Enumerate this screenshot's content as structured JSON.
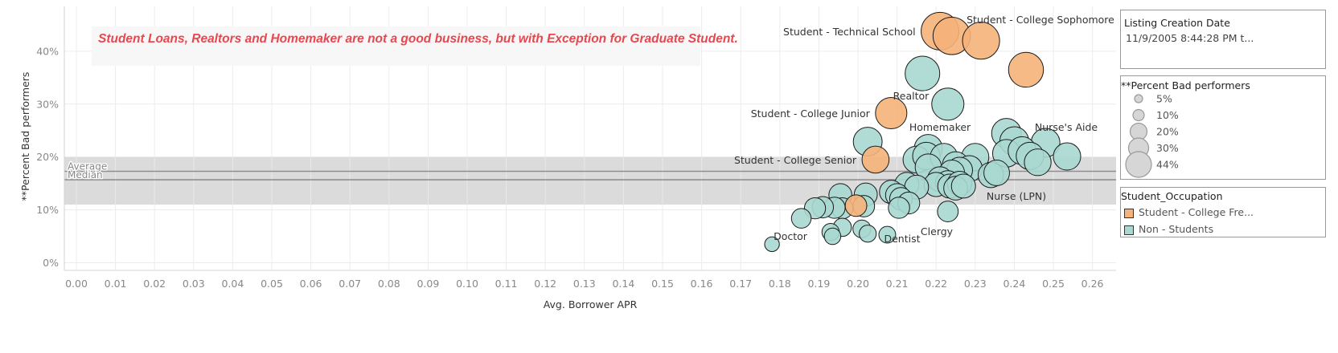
{
  "chart_data": {
    "type": "scatter",
    "xlabel": "Avg. Borrower APR",
    "ylabel": "**Percent Bad performers",
    "xlim": [
      0,
      0.268
    ],
    "ylim": [
      -0.01,
      0.48
    ],
    "x_ticks": [
      "0.00",
      "0.01",
      "0.02",
      "0.03",
      "0.04",
      "0.05",
      "0.06",
      "0.07",
      "0.08",
      "0.09",
      "0.10",
      "0.11",
      "0.12",
      "0.13",
      "0.14",
      "0.15",
      "0.16",
      "0.17",
      "0.18",
      "0.19",
      "0.20",
      "0.21",
      "0.22",
      "0.23",
      "0.24",
      "0.25",
      "0.26"
    ],
    "y_ticks": [
      {
        "value": 0.0,
        "label": "0%"
      },
      {
        "value": 0.1,
        "label": "10%"
      },
      {
        "value": 0.2,
        "label": "20%"
      },
      {
        "value": 0.3,
        "label": "30%"
      },
      {
        "value": 0.4,
        "label": "40%"
      }
    ],
    "reference_band": [
      0.11,
      0.2
    ],
    "reference_lines": [
      {
        "name": "Average",
        "value": 0.173
      },
      {
        "name": "Median",
        "value": 0.157
      }
    ],
    "annotation": "Student Loans, Realtors and Homemaker are not a good business, but with Exception for Graduate Student.",
    "colors": {
      "student": "#f5b27a",
      "non_student": "#a8d8d0",
      "band": "#d9d9d9",
      "reference_line": "#8f8f8f",
      "annotation": "#e8474f",
      "axis_text": "#888888",
      "grid": "#ececec"
    },
    "series": [
      {
        "name": "Student - College Fre...",
        "color": "#f5b27a",
        "points": [
          {
            "x": 0.221,
            "y": 0.438,
            "label": "Student - Technical School"
          },
          {
            "x": 0.224,
            "y": 0.429
          },
          {
            "x": 0.2315,
            "y": 0.42,
            "label": "Student - College Sophomore"
          },
          {
            "x": 0.243,
            "y": 0.365
          },
          {
            "x": 0.2085,
            "y": 0.283,
            "label": "Student - College Junior"
          },
          {
            "x": 0.2045,
            "y": 0.195,
            "label": "Student - College Senior"
          },
          {
            "x": 0.1995,
            "y": 0.108
          }
        ]
      },
      {
        "name": "Non - Students",
        "color": "#a8d8d0",
        "points": [
          {
            "x": 0.2165,
            "y": 0.358
          },
          {
            "x": 0.223,
            "y": 0.3,
            "label": "Realtor"
          },
          {
            "x": 0.238,
            "y": 0.245,
            "label": "Homemaker"
          },
          {
            "x": 0.248,
            "y": 0.227,
            "label": "Nurse's Aide"
          },
          {
            "x": 0.2025,
            "y": 0.229
          },
          {
            "x": 0.24,
            "y": 0.23
          },
          {
            "x": 0.218,
            "y": 0.216
          },
          {
            "x": 0.238,
            "y": 0.207
          },
          {
            "x": 0.242,
            "y": 0.212
          },
          {
            "x": 0.2535,
            "y": 0.201
          },
          {
            "x": 0.23,
            "y": 0.2
          },
          {
            "x": 0.215,
            "y": 0.195
          },
          {
            "x": 0.2175,
            "y": 0.202
          },
          {
            "x": 0.222,
            "y": 0.2
          },
          {
            "x": 0.244,
            "y": 0.202
          },
          {
            "x": 0.246,
            "y": 0.19
          },
          {
            "x": 0.218,
            "y": 0.181
          },
          {
            "x": 0.225,
            "y": 0.185
          },
          {
            "x": 0.2285,
            "y": 0.178
          },
          {
            "x": 0.226,
            "y": 0.175
          },
          {
            "x": 0.224,
            "y": 0.17
          },
          {
            "x": 0.234,
            "y": 0.166
          },
          {
            "x": 0.2355,
            "y": 0.17
          },
          {
            "x": 0.221,
            "y": 0.158
          },
          {
            "x": 0.223,
            "y": 0.151
          },
          {
            "x": 0.22,
            "y": 0.148
          },
          {
            "x": 0.2235,
            "y": 0.145
          },
          {
            "x": 0.226,
            "y": 0.15
          },
          {
            "x": 0.225,
            "y": 0.141
          },
          {
            "x": 0.227,
            "y": 0.145,
            "label": "Nurse (LPN)"
          },
          {
            "x": 0.2125,
            "y": 0.148
          },
          {
            "x": 0.215,
            "y": 0.143
          },
          {
            "x": 0.2085,
            "y": 0.134
          },
          {
            "x": 0.21,
            "y": 0.128
          },
          {
            "x": 0.202,
            "y": 0.129
          },
          {
            "x": 0.1955,
            "y": 0.128
          },
          {
            "x": 0.211,
            "y": 0.121
          },
          {
            "x": 0.213,
            "y": 0.113
          },
          {
            "x": 0.2105,
            "y": 0.104
          },
          {
            "x": 0.2015,
            "y": 0.107
          },
          {
            "x": 0.196,
            "y": 0.103
          },
          {
            "x": 0.194,
            "y": 0.104
          },
          {
            "x": 0.191,
            "y": 0.105
          },
          {
            "x": 0.189,
            "y": 0.103
          },
          {
            "x": 0.223,
            "y": 0.097,
            "label": "Clergy"
          },
          {
            "x": 0.1855,
            "y": 0.084
          },
          {
            "x": 0.196,
            "y": 0.067
          },
          {
            "x": 0.201,
            "y": 0.064
          },
          {
            "x": 0.193,
            "y": 0.058
          },
          {
            "x": 0.2025,
            "y": 0.055
          },
          {
            "x": 0.1935,
            "y": 0.05,
            "label": "Doctor"
          },
          {
            "x": 0.2075,
            "y": 0.053,
            "label": "Dentist"
          },
          {
            "x": 0.178,
            "y": 0.035
          }
        ]
      }
    ]
  },
  "legends": {
    "date": {
      "title": "Listing Creation Date",
      "value": "11/9/2005 8:44:28 PM t..."
    },
    "size": {
      "title": "**Percent Bad performers",
      "items": [
        {
          "label": "5%",
          "value": 0.05
        },
        {
          "label": "10%",
          "value": 0.1
        },
        {
          "label": "20%",
          "value": 0.2
        },
        {
          "label": "30%",
          "value": 0.3
        },
        {
          "label": "44%",
          "value": 0.44
        }
      ]
    },
    "color": {
      "title": "Student_Occupation",
      "items": [
        {
          "label": "Student - College Fre...",
          "color": "#f5b27a"
        },
        {
          "label": "Non - Students",
          "color": "#a8d8d0"
        }
      ]
    }
  }
}
